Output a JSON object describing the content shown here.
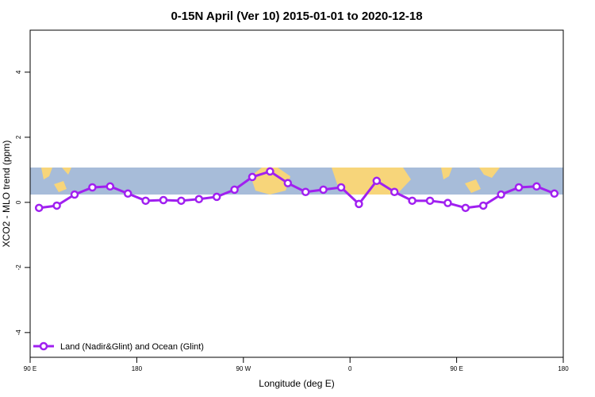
{
  "chart_data": {
    "type": "line",
    "title": "0-15N April (Ver 10)   2015-01-01 to 2020-12-18",
    "x_label": "Longitude (deg E)",
    "y_label": "XCO2 - MLO trend (ppm)",
    "x": [
      97.5,
      112.5,
      127.5,
      142.5,
      157.5,
      172.5,
      187.5,
      202.5,
      217.5,
      232.5,
      247.5,
      262.5,
      277.5,
      292.5,
      307.5,
      322.5,
      337.5,
      352.5,
      367.5,
      382.5,
      397.5,
      412.5,
      427.5,
      442.5,
      457.5,
      472.5,
      487.5,
      502.5,
      517.5,
      532.5
    ],
    "series": [
      {
        "name": "Land (Nadir&Glint) and Ocean (Glint)",
        "color": "#a020f0",
        "values": [
          -0.17,
          -0.1,
          0.24,
          0.46,
          0.49,
          0.27,
          0.05,
          0.07,
          0.05,
          0.1,
          0.17,
          0.39,
          0.78,
          0.95,
          0.59,
          0.32,
          0.39,
          0.46,
          -0.05,
          0.66,
          0.32,
          0.05,
          0.05,
          -0.02,
          -0.17,
          -0.1,
          0.24,
          0.46,
          0.49,
          0.27
        ]
      }
    ],
    "xlim": [
      90,
      540
    ],
    "ylim": [
      -4.76,
      5.29
    ],
    "xticks": [
      {
        "value": 90,
        "label": "90 E"
      },
      {
        "value": 180,
        "label": "180"
      },
      {
        "value": 270,
        "label": "90 W"
      },
      {
        "value": 360,
        "label": "0"
      },
      {
        "value": 450,
        "label": "90 E"
      },
      {
        "value": 540,
        "label": "180"
      }
    ],
    "yticks": [
      -4,
      -2,
      0,
      2,
      4
    ],
    "legend": "bottom left"
  }
}
